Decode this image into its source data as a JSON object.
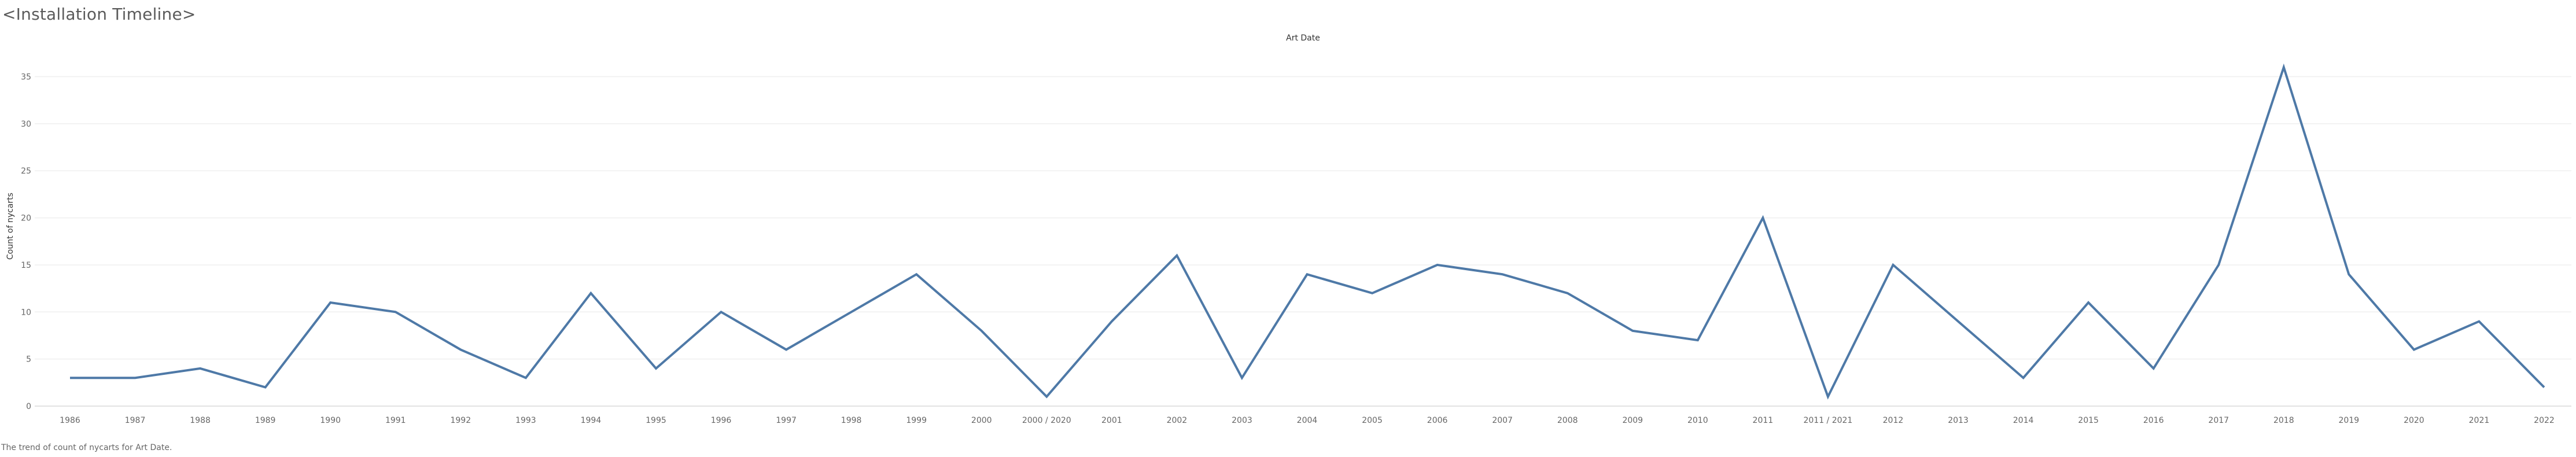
{
  "page": {
    "title": "<Installation Timeline>",
    "caption": "The trend of count of nycarts for Art Date."
  },
  "chart_data": {
    "type": "line",
    "title": "Art Date",
    "xlabel": "",
    "ylabel": "Count of nycarts",
    "ylim": [
      0,
      37
    ],
    "yticks": [
      0,
      5,
      10,
      15,
      20,
      25,
      30,
      35
    ],
    "grid": true,
    "line_color": "#4e79a7",
    "categories": [
      "1986",
      "1987",
      "1988",
      "1989",
      "1990",
      "1991",
      "1992",
      "1993",
      "1994",
      "1995",
      "1996",
      "1997",
      "1998",
      "1999",
      "2000",
      "2000 / 2020",
      "2001",
      "2002",
      "2003",
      "2004",
      "2005",
      "2006",
      "2007",
      "2008",
      "2009",
      "2010",
      "2011",
      "2011 / 2021",
      "2012",
      "2013",
      "2014",
      "2015",
      "2016",
      "2017",
      "2018",
      "2019",
      "2020",
      "2021",
      "2022"
    ],
    "series": [
      {
        "values": [
          3,
          3,
          4,
          2,
          11,
          10,
          6,
          3,
          12,
          4,
          10,
          6,
          10,
          14,
          8,
          1,
          9,
          16,
          3,
          14,
          12,
          15,
          14,
          12,
          8,
          7,
          20,
          1,
          15,
          9,
          3,
          11,
          4,
          15,
          36,
          14,
          6,
          9,
          2
        ]
      }
    ]
  }
}
